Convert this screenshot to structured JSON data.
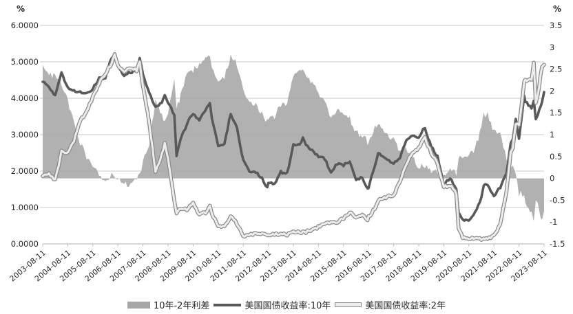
{
  "chart_data": {
    "type": "area+line combo",
    "title": "",
    "left_axis": {
      "unit": "%",
      "min": 0,
      "max": 6,
      "ticks": [
        "6.0000",
        "5.0000",
        "4.0000",
        "3.0000",
        "2.0000",
        "1.0000",
        "0.0000"
      ]
    },
    "right_axis": {
      "unit": "%",
      "min": -1.5,
      "max": 3.5,
      "ticks": [
        "3.5",
        "3",
        "2.5",
        "2",
        "1.5",
        "1",
        "0.5",
        "0",
        "-0.5",
        "-1",
        "-1.5"
      ]
    },
    "x_tick_labels": [
      "2003-08-11",
      "2004-08-11",
      "2005-08-11",
      "2006-08-11",
      "2007-08-11",
      "2008-08-11",
      "2009-08-11",
      "2010-08-11",
      "2011-08-11",
      "2012-08-11",
      "2013-08-11",
      "2014-08-11",
      "2015-08-11",
      "2016-08-11",
      "2017-08-11",
      "2018-08-11",
      "2019-08-11",
      "2020-08-11",
      "2021-08-11",
      "2022-08-11",
      "2023-08-11"
    ],
    "x": [
      2003.58,
      2003.83,
      2004.08,
      2004.33,
      2004.58,
      2004.83,
      2005.08,
      2005.33,
      2005.58,
      2005.83,
      2006.08,
      2006.33,
      2006.45,
      2006.58,
      2006.83,
      2007.08,
      2007.33,
      2007.45,
      2007.58,
      2007.83,
      2008.08,
      2008.33,
      2008.45,
      2008.58,
      2008.83,
      2008.92,
      2009.08,
      2009.33,
      2009.58,
      2009.83,
      2010.08,
      2010.25,
      2010.33,
      2010.58,
      2010.83,
      2011.08,
      2011.33,
      2011.58,
      2011.83,
      2012.08,
      2012.33,
      2012.54,
      2012.58,
      2012.83,
      2013.08,
      2013.33,
      2013.58,
      2013.83,
      2013.96,
      2014.08,
      2014.33,
      2014.58,
      2014.83,
      2015.08,
      2015.33,
      2015.58,
      2015.83,
      2016.08,
      2016.33,
      2016.54,
      2016.58,
      2016.83,
      2016.96,
      2017.08,
      2017.33,
      2017.58,
      2017.83,
      2018.08,
      2018.33,
      2018.58,
      2018.75,
      2018.83,
      2019.08,
      2019.33,
      2019.58,
      2019.83,
      2020.08,
      2020.17,
      2020.33,
      2020.58,
      2020.83,
      2021.08,
      2021.17,
      2021.33,
      2021.58,
      2021.83,
      2022.08,
      2022.25,
      2022.33,
      2022.45,
      2022.58,
      2022.79,
      2022.83,
      2023.08,
      2023.17,
      2023.25,
      2023.33,
      2023.5,
      2023.58
    ],
    "series": [
      {
        "name": "10年-2年利差",
        "type": "area",
        "axis": "right",
        "color": "#a6a6a6",
        "values": [
          2.59,
          2.37,
          2.34,
          2.19,
          1.77,
          1.34,
          0.79,
          0.5,
          0.22,
          0.12,
          -0.1,
          0.14,
          0.02,
          -0.02,
          -0.14,
          -0.13,
          -0.02,
          0.12,
          0.36,
          0.81,
          1.77,
          1.43,
          1.33,
          1.53,
          2.32,
          1.6,
          1.89,
          2.36,
          2.47,
          2.6,
          2.83,
          2.79,
          2.59,
          2.18,
          2.31,
          2.81,
          2.61,
          2.07,
          1.76,
          1.69,
          1.51,
          1.29,
          1.41,
          1.38,
          1.71,
          1.68,
          2.38,
          2.42,
          2.56,
          2.38,
          2.17,
          1.95,
          1.8,
          1.36,
          1.59,
          1.47,
          1.38,
          1.05,
          0.99,
          0.83,
          0.82,
          1.16,
          1.29,
          1.22,
          1.0,
          0.87,
          0.65,
          0.68,
          0.47,
          0.25,
          0.31,
          0.25,
          0.18,
          0.19,
          0.06,
          0.2,
          0.11,
          0.42,
          0.5,
          0.51,
          0.7,
          1.14,
          1.46,
          1.47,
          1.06,
          1.05,
          0.49,
          0.25,
          0.26,
          0.1,
          -0.35,
          -0.35,
          -0.59,
          -0.77,
          -1.05,
          -0.45,
          -0.53,
          -1.0,
          -0.75
        ]
      },
      {
        "name": "美国国债收益率:10年",
        "type": "line",
        "axis": "left",
        "color": "#595959",
        "values": [
          4.45,
          4.3,
          4.08,
          4.72,
          4.28,
          4.19,
          4.17,
          4.14,
          4.26,
          4.54,
          4.57,
          5.11,
          5.22,
          4.88,
          4.6,
          4.72,
          4.75,
          5.1,
          4.67,
          4.15,
          3.74,
          3.88,
          4.1,
          3.89,
          3.53,
          2.42,
          2.87,
          3.29,
          3.59,
          3.4,
          3.69,
          3.85,
          3.42,
          2.7,
          2.76,
          3.58,
          3.17,
          2.3,
          2.01,
          1.97,
          1.8,
          1.53,
          1.68,
          1.65,
          1.98,
          1.93,
          2.74,
          2.72,
          2.9,
          2.71,
          2.56,
          2.42,
          2.33,
          1.98,
          2.2,
          2.17,
          2.26,
          1.78,
          1.81,
          1.5,
          1.56,
          2.14,
          2.49,
          2.42,
          2.3,
          2.21,
          2.35,
          2.86,
          2.98,
          2.89,
          3.16,
          3.15,
          2.68,
          2.4,
          1.63,
          1.81,
          1.5,
          0.87,
          0.67,
          0.65,
          0.87,
          1.26,
          1.61,
          1.62,
          1.28,
          1.56,
          1.93,
          2.75,
          2.9,
          3.4,
          2.9,
          4.1,
          3.89,
          3.75,
          3.95,
          3.45,
          3.57,
          3.9,
          4.17
        ]
      },
      {
        "name": "美国国债收益率:2年",
        "type": "line-outlined",
        "axis": "left",
        "color": "#ececec",
        "outline_color": "#8c8c8c",
        "values": [
          1.86,
          1.93,
          1.74,
          2.53,
          2.51,
          2.85,
          3.38,
          3.64,
          4.04,
          4.42,
          4.67,
          4.97,
          5.2,
          4.9,
          4.74,
          4.85,
          4.77,
          4.98,
          4.31,
          3.34,
          1.97,
          2.45,
          2.77,
          2.36,
          1.21,
          0.82,
          0.98,
          0.93,
          1.12,
          0.8,
          0.86,
          1.06,
          0.83,
          0.52,
          0.45,
          0.77,
          0.56,
          0.23,
          0.25,
          0.28,
          0.29,
          0.24,
          0.27,
          0.27,
          0.27,
          0.25,
          0.36,
          0.3,
          0.34,
          0.33,
          0.39,
          0.47,
          0.53,
          0.62,
          0.61,
          0.7,
          0.88,
          0.73,
          0.82,
          0.67,
          0.74,
          0.98,
          1.2,
          1.2,
          1.3,
          1.34,
          1.7,
          2.18,
          2.51,
          2.64,
          2.85,
          2.9,
          2.5,
          2.21,
          1.57,
          1.61,
          1.39,
          0.45,
          0.17,
          0.14,
          0.17,
          0.12,
          0.15,
          0.15,
          0.22,
          0.51,
          1.44,
          2.5,
          2.64,
          3.3,
          3.25,
          4.45,
          4.48,
          4.52,
          5.0,
          3.9,
          4.1,
          4.9,
          4.92
        ]
      }
    ],
    "legend_position": "bottom",
    "grid": "horizontal",
    "gridline_color": "#c9c9c9"
  }
}
